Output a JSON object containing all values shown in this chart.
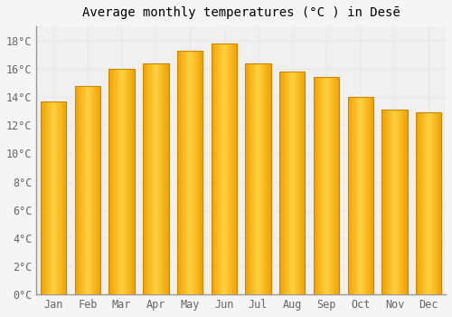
{
  "title": "Average monthly temperatures (°C ) in Desē",
  "months": [
    "Jan",
    "Feb",
    "Mar",
    "Apr",
    "May",
    "Jun",
    "Jul",
    "Aug",
    "Sep",
    "Oct",
    "Nov",
    "Dec"
  ],
  "temperatures": [
    13.7,
    14.8,
    16.0,
    16.4,
    17.3,
    17.8,
    16.4,
    15.8,
    15.4,
    14.0,
    13.1,
    12.9
  ],
  "ylim": [
    0,
    19
  ],
  "yticks": [
    0,
    2,
    4,
    6,
    8,
    10,
    12,
    14,
    16,
    18
  ],
  "ytick_labels": [
    "0°C",
    "2°C",
    "4°C",
    "6°C",
    "8°C",
    "10°C",
    "12°C",
    "14°C",
    "16°C",
    "18°C"
  ],
  "bar_color_center": "#FFD040",
  "bar_color_edge": "#F0A000",
  "bar_edge_color": "#CC8800",
  "background_color": "#f5f5f5",
  "plot_bg_color": "#f0f0f0",
  "grid_color": "#e8e8e8",
  "title_fontsize": 10,
  "tick_fontsize": 8.5,
  "bar_width": 0.75
}
